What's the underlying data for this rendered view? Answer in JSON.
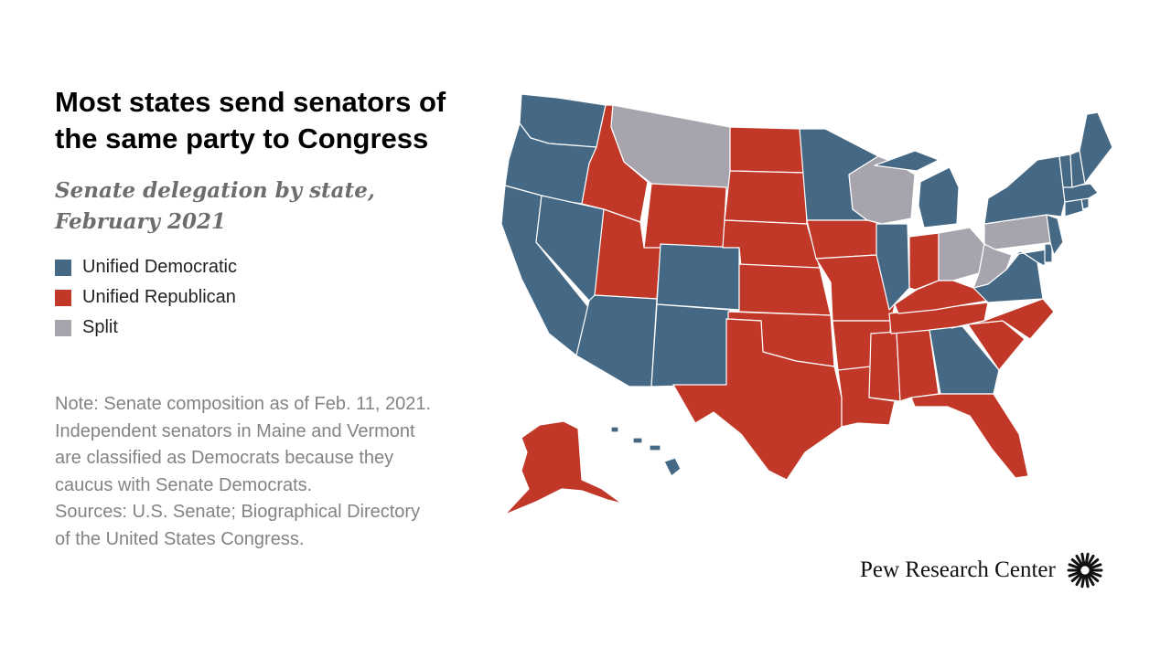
{
  "title": "Most states send senators of the same party to Congress",
  "subtitle": "Senate delegation by state, February 2021",
  "legend": [
    {
      "label": "Unified Democratic",
      "color": "#456985"
    },
    {
      "label": "Unified Republican",
      "color": "#c13828"
    },
    {
      "label": "Split",
      "color": "#a8a4ad"
    }
  ],
  "note": "Note: Senate composition as of Feb. 11, 2021. Independent senators in Maine and Vermont are classified as Democrats because they caucus with Senate Democrats.",
  "sources": "Sources: U.S. Senate; Biographical Directory of the United States Congress.",
  "brand": "Pew Research Center",
  "colors": {
    "D": "#456985",
    "R": "#c13828",
    "S": "#a8a4ad"
  },
  "map_data": {
    "WA": "D",
    "OR": "D",
    "CA": "D",
    "NV": "D",
    "AZ": "D",
    "CO": "D",
    "NM": "D",
    "MN": "D",
    "IL": "D",
    "MI": "D",
    "GA": "D",
    "VA": "D",
    "MD": "D",
    "DE": "D",
    "NJ": "D",
    "NY": "D",
    "CT": "D",
    "RI": "D",
    "MA": "D",
    "VT": "D",
    "NH": "D",
    "ME": "D",
    "HI": "D",
    "ID": "R",
    "UT": "R",
    "WY": "R",
    "ND": "R",
    "SD": "R",
    "NE": "R",
    "KS": "R",
    "OK": "R",
    "TX": "R",
    "IA": "R",
    "MO": "R",
    "AR": "R",
    "LA": "R",
    "MS": "R",
    "AL": "R",
    "TN": "R",
    "KY": "R",
    "IN": "R",
    "FL": "R",
    "SC": "R",
    "NC": "R",
    "AK": "R",
    "MT": "S",
    "WI": "S",
    "OH": "S",
    "PA": "S",
    "WV": "S"
  }
}
